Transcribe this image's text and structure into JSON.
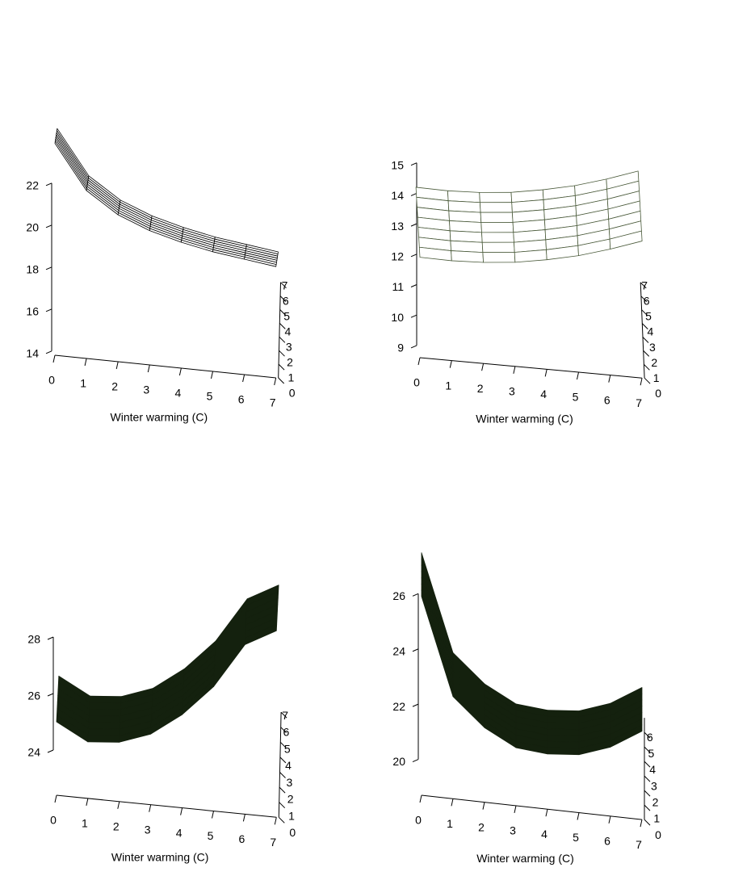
{
  "chart_data": [
    {
      "type": "surface",
      "xlabel": "Winter warming (C)",
      "x": [
        0,
        1,
        2,
        3,
        4,
        5,
        6,
        7
      ],
      "y": [
        0,
        1,
        2,
        3,
        4,
        5,
        6,
        7
      ],
      "z": [
        [
          23.9,
          21.8,
          20.8,
          20.2,
          19.8,
          19.5,
          19.3,
          19.1
        ],
        [
          23.35,
          21.25,
          20.25,
          19.65,
          19.25,
          18.95,
          18.75,
          18.55
        ],
        [
          22.8,
          20.7,
          19.7,
          19.1,
          18.7,
          18.4,
          18.2,
          18.0
        ],
        [
          22.25,
          20.15,
          19.15,
          18.55,
          18.15,
          17.85,
          17.65,
          17.45
        ],
        [
          21.7,
          19.6,
          18.6,
          18.0,
          17.6,
          17.3,
          17.1,
          16.9
        ],
        [
          21.15,
          19.05,
          18.05,
          17.45,
          17.05,
          16.75,
          16.55,
          16.35
        ],
        [
          20.6,
          18.5,
          17.5,
          16.9,
          16.5,
          16.2,
          16.0,
          15.8
        ],
        [
          20.05,
          17.95,
          16.95,
          16.35,
          15.95,
          15.65,
          15.45,
          15.25
        ]
      ],
      "xlim": [
        0,
        7
      ],
      "ylim": [
        0,
        7
      ],
      "zlim": [
        13.8,
        22.2
      ],
      "xticks": [
        0,
        1,
        2,
        3,
        4,
        5,
        6,
        7
      ],
      "yticks": [
        0,
        1,
        2,
        3,
        4,
        5,
        6,
        7
      ],
      "zticks": [
        14,
        16,
        18,
        20,
        22
      ],
      "fill": "#ffffff",
      "line_color": "#000000"
    },
    {
      "type": "surface",
      "xlabel": "Winter warming (C)",
      "x": [
        0,
        1,
        2,
        3,
        4,
        5,
        6,
        7
      ],
      "y": [
        0,
        1,
        2,
        3,
        4,
        5,
        6,
        7
      ],
      "z": [
        [
          11.9,
          11.88,
          11.92,
          12.02,
          12.2,
          12.43,
          12.74,
          13.1
        ],
        [
          11.78,
          11.76,
          11.8,
          11.9,
          12.08,
          12.31,
          12.62,
          12.98
        ],
        [
          11.66,
          11.64,
          11.68,
          11.78,
          11.96,
          12.19,
          12.5,
          12.86
        ],
        [
          11.54,
          11.52,
          11.56,
          11.66,
          11.84,
          12.07,
          12.38,
          12.74
        ],
        [
          11.42,
          11.4,
          11.44,
          11.54,
          11.72,
          11.95,
          12.26,
          12.62
        ],
        [
          11.3,
          11.28,
          11.32,
          11.42,
          11.6,
          11.83,
          12.14,
          12.5
        ],
        [
          11.18,
          11.16,
          11.2,
          11.3,
          11.48,
          11.71,
          12.02,
          12.38
        ],
        [
          11.06,
          11.04,
          11.08,
          11.18,
          11.36,
          11.59,
          11.9,
          12.26
        ]
      ],
      "xlim": [
        0,
        7
      ],
      "ylim": [
        0,
        7
      ],
      "zlim": [
        8.6,
        15.1
      ],
      "xticks": [
        0,
        1,
        2,
        3,
        4,
        5,
        6,
        7
      ],
      "yticks": [
        0,
        1,
        2,
        3,
        4,
        5,
        6,
        7
      ],
      "zticks": [
        9,
        10,
        11,
        12,
        13,
        14,
        15
      ],
      "fill": "#ffffff",
      "line_color": "#4a5a3a"
    },
    {
      "type": "surface",
      "xlabel": "Winter warming (C)",
      "x": [
        0,
        1,
        2,
        3,
        4,
        5,
        6,
        7
      ],
      "y": [
        0,
        1,
        2,
        3,
        4,
        5,
        6,
        7
      ],
      "z": [
        [
          25.0,
          24.4,
          24.5,
          24.9,
          25.7,
          26.8,
          28.4,
          29.0
        ],
        [
          24.7,
          24.1,
          24.2,
          24.6,
          25.4,
          26.5,
          28.1,
          28.7
        ],
        [
          24.4,
          23.8,
          23.9,
          24.3,
          25.1,
          26.2,
          27.8,
          28.4
        ],
        [
          24.1,
          23.5,
          23.6,
          24.0,
          24.8,
          25.9,
          27.5,
          28.1
        ],
        [
          23.8,
          23.2,
          23.3,
          23.7,
          24.5,
          25.6,
          27.2,
          27.8
        ],
        [
          23.5,
          22.9,
          23.0,
          23.4,
          24.2,
          25.3,
          26.9,
          27.5
        ],
        [
          23.2,
          22.6,
          22.7,
          23.1,
          23.9,
          25.0,
          26.6,
          27.2
        ],
        [
          22.9,
          22.3,
          22.4,
          22.8,
          23.6,
          24.7,
          26.3,
          26.9
        ]
      ],
      "xlim": [
        0,
        7
      ],
      "ylim": [
        0,
        7
      ],
      "zlim": [
        22.4,
        28.2
      ],
      "xticks": [
        0,
        1,
        2,
        3,
        4,
        5,
        6,
        7
      ],
      "yticks": [
        0,
        1,
        2,
        3,
        4,
        5,
        6,
        7
      ],
      "zticks": [
        24,
        26,
        28
      ],
      "fill": "#14210e",
      "line_color": "#14210e"
    },
    {
      "type": "surface",
      "xlabel": "Winter warming (C)",
      "x": [
        0,
        1,
        2,
        3,
        4,
        5,
        6,
        7
      ],
      "y": [
        0,
        1,
        2,
        3,
        4,
        5,
        6,
        7
      ],
      "z": [
        [
          25.9,
          22.4,
          21.4,
          20.8,
          20.7,
          20.8,
          21.2,
          21.9
        ],
        [
          25.6,
          22.1,
          21.1,
          20.5,
          20.4,
          20.5,
          20.9,
          21.6
        ],
        [
          25.3,
          21.8,
          20.8,
          20.2,
          20.1,
          20.2,
          20.6,
          21.3
        ],
        [
          25.0,
          21.5,
          20.5,
          19.9,
          19.8,
          19.9,
          20.3,
          21.0
        ],
        [
          24.7,
          21.2,
          20.2,
          19.6,
          19.5,
          19.6,
          20.0,
          20.7
        ],
        [
          24.4,
          20.9,
          19.9,
          19.3,
          19.2,
          19.3,
          19.7,
          20.4
        ],
        [
          24.1,
          20.6,
          19.6,
          19.0,
          18.9,
          19.0,
          19.4,
          20.1
        ],
        [
          23.8,
          20.3,
          19.3,
          18.7,
          18.6,
          18.7,
          19.1,
          19.8
        ]
      ],
      "xlim": [
        0,
        7
      ],
      "ylim": [
        0,
        7
      ],
      "zlim": [
        18.7,
        26.2
      ],
      "xticks": [
        0,
        1,
        2,
        3,
        4,
        5,
        6,
        7
      ],
      "yticks": [
        0,
        1,
        2,
        3,
        4,
        5,
        6
      ],
      "zticks": [
        20,
        22,
        24,
        26
      ],
      "fill": "#14210e",
      "line_color": "#14210e"
    }
  ]
}
